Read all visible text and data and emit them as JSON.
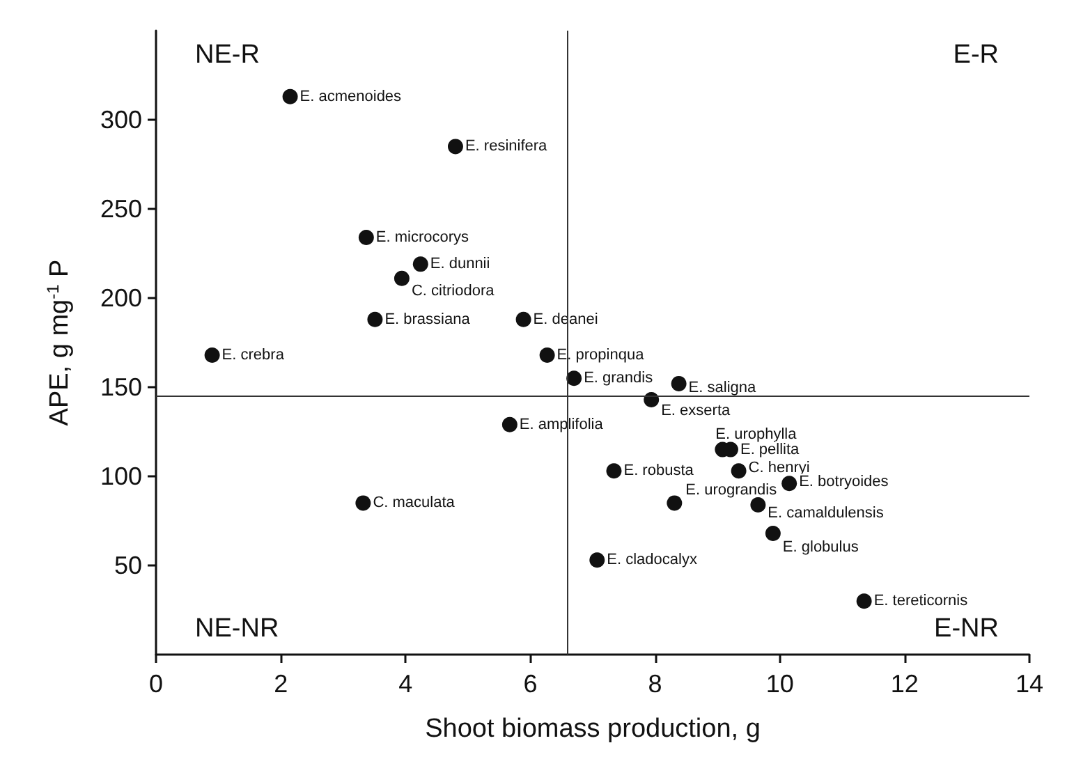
{
  "chart_data": {
    "type": "scatter",
    "xlabel": "Shoot biomass production, g",
    "ylabel": "APE, g mg$^{-1}$ P",
    "x": [
      2.15,
      4.8,
      3.37,
      4.24,
      3.94,
      3.51,
      5.89,
      0.9,
      6.27,
      6.7,
      8.38,
      7.94,
      5.67,
      3.32,
      9.08,
      9.21,
      7.34,
      9.34,
      10.15,
      8.31,
      9.65,
      9.89,
      7.07,
      11.35
    ],
    "values": [
      313,
      285,
      234,
      219,
      211,
      188,
      188,
      168,
      168,
      155,
      152,
      143,
      129,
      85,
      115,
      115,
      103,
      103,
      96,
      85,
      84,
      68,
      53,
      30
    ],
    "color": "#111111",
    "marker": "circle",
    "grid": false,
    "xlim": [
      0,
      14
    ],
    "xticks": [
      0,
      2,
      4,
      6,
      8,
      10,
      12,
      14
    ],
    "ylim": [
      0,
      350
    ],
    "yticks": [
      50,
      100,
      150,
      200,
      250,
      300
    ],
    "ref_lines": [
      {
        "axis": "x",
        "value": 6.6,
        "color": "#333333"
      },
      {
        "axis": "y",
        "value": 145,
        "color": "#333333"
      }
    ],
    "annotations": [
      "NE-R",
      "E-R",
      "NE-NR",
      "E-NR",
      {
        "text": "E. acmenoides",
        "x": 2.15,
        "y": 313
      },
      {
        "text": "E. resinifera",
        "x": 4.8,
        "y": 285
      },
      {
        "text": "E. microcorys",
        "x": 3.37,
        "y": 234
      },
      {
        "text": "E. dunnii",
        "x": 4.24,
        "y": 219
      },
      {
        "text": "C. citriodora",
        "x": 3.94,
        "y": 211
      },
      {
        "text": "E. brassiana",
        "x": 3.51,
        "y": 188
      },
      {
        "text": "E. deanei",
        "x": 5.89,
        "y": 188
      },
      {
        "text": "E. crebra",
        "x": 0.9,
        "y": 168
      },
      {
        "text": "E. propinqua",
        "x": 6.27,
        "y": 168
      },
      {
        "text": "E. grandis",
        "x": 6.7,
        "y": 155
      },
      {
        "text": "E. saligna",
        "x": 8.38,
        "y": 152
      },
      {
        "text": "E. exserta",
        "x": 7.94,
        "y": 143
      },
      {
        "text": "E. amplifolia",
        "x": 5.67,
        "y": 129
      },
      {
        "text": "C. maculata",
        "x": 3.32,
        "y": 85
      },
      {
        "text": "E. urophylla",
        "x": 9.08,
        "y": 115
      },
      {
        "text": "E. pellita",
        "x": 9.21,
        "y": 115
      },
      {
        "text": "E. robusta",
        "x": 7.34,
        "y": 103
      },
      {
        "text": "C. henryi",
        "x": 9.34,
        "y": 103
      },
      {
        "text": "E. botryoides",
        "x": 10.15,
        "y": 96
      },
      {
        "text": "E. urograndis",
        "x": 8.31,
        "y": 85
      },
      {
        "text": "E. camaldulensis",
        "x": 9.65,
        "y": 84
      },
      {
        "text": "E. globulus",
        "x": 9.89,
        "y": 68
      },
      {
        "text": "E. cladocalyx",
        "x": 7.07,
        "y": 53
      },
      {
        "text": "E. tereticornis",
        "x": 11.35,
        "y": 30
      }
    ]
  }
}
